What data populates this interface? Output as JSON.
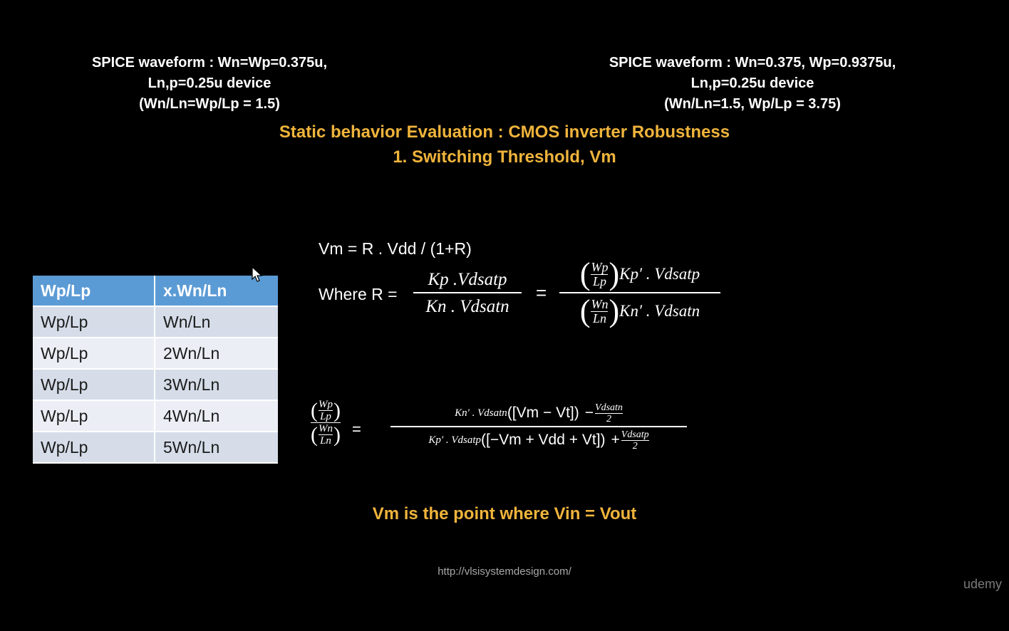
{
  "captions": {
    "left": [
      "SPICE waveform : Wn=Wp=0.375u,",
      "Ln,p=0.25u device",
      "(Wn/Ln=Wp/Lp = 1.5)"
    ],
    "right": [
      "SPICE waveform : Wn=0.375, Wp=0.9375u,",
      "Ln,p=0.25u device",
      "(Wn/Ln=1.5, Wp/Lp = 3.75)"
    ]
  },
  "heading": {
    "line1": "Static behavior Evaluation : CMOS inverter Robustness",
    "line2": "1. Switching Threshold, Vm"
  },
  "table": {
    "headers": [
      "Wp/Lp",
      "x.Wn/Ln"
    ],
    "rows": [
      [
        "Wp/Lp",
        "Wn/Ln"
      ],
      [
        "Wp/Lp",
        "2Wn/Ln"
      ],
      [
        "Wp/Lp",
        "3Wn/Ln"
      ],
      [
        "Wp/Lp",
        "4Wn/Ln"
      ],
      [
        "Wp/Lp",
        "5Wn/Ln"
      ]
    ]
  },
  "equations": {
    "vm": "Vm = R . Vdd / (1+R)",
    "where_label": "Where R =",
    "r_num": "Kp .Vdsatp",
    "r_den": "Kn . Vdsatn",
    "equals": "=",
    "wp": "Wp",
    "lp": "Lp",
    "wn": "Wn",
    "ln": "Ln",
    "kpprime_vdsatp": "Kp′ . Vdsatp",
    "knprime_vdsatn": "Kn′ . Vdsatn",
    "ratio_num_a": "Kn′ . Vdsatn",
    "ratio_num_b": "([Vm − Vt])",
    "ratio_num_minus": "−",
    "ratio_num_small_top": "Vdsatn",
    "ratio_num_small_bottom": "2",
    "ratio_den_a": "Kp′ . Vdsatp",
    "ratio_den_b": "([−Vm + Vdd + Vt])",
    "ratio_den_plus": "+",
    "ratio_den_small_top": "Vdsatp",
    "ratio_den_small_bottom": "2"
  },
  "conclusion": "Vm is the point where Vin = Vout",
  "url": "http://vlsisystemdesign.com/",
  "brand": "udemy",
  "colors": {
    "background": "#000000",
    "heading": "#f0b43c",
    "table_header": "#5b9bd5",
    "table_row_odd": "#d6dde9",
    "table_row_even": "#ebeff5"
  }
}
